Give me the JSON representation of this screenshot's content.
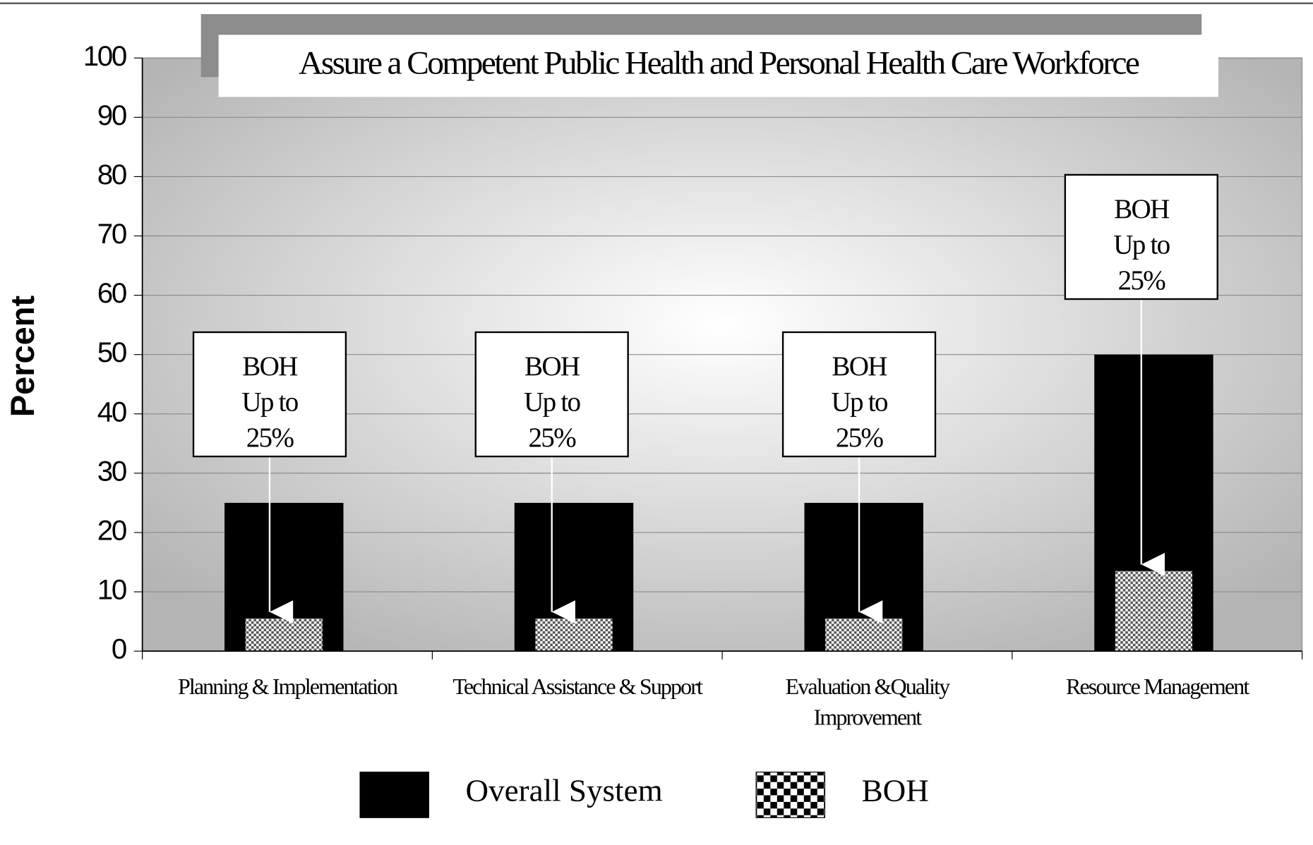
{
  "chart_data": {
    "type": "bar",
    "title": "Assure a Competent Public Health and Personal Health Care Workforce",
    "y_label": "Percent",
    "categories": [
      "Planning & Implementation",
      "Technical Assistance & Support",
      "Evaluation &Quality Improvement",
      "Resource Management"
    ],
    "series": [
      {
        "name": "Overall System",
        "color": "#000000",
        "values": [
          25,
          25,
          25,
          50
        ]
      },
      {
        "name": "BOH",
        "color": "#9a9a9a",
        "pattern": "checker",
        "values": [
          5.5,
          5.5,
          5.5,
          13.5
        ]
      }
    ],
    "annotations": [
      "BOH Up to 25%",
      "BOH Up to 25%",
      "BOH Up to 25%",
      "BOH Up to 25%"
    ],
    "ylim": [
      0,
      100
    ],
    "yticks": [
      0,
      10,
      20,
      30,
      40,
      50,
      60,
      70,
      80,
      90,
      100
    ],
    "grid": true,
    "legend": "bottom"
  }
}
